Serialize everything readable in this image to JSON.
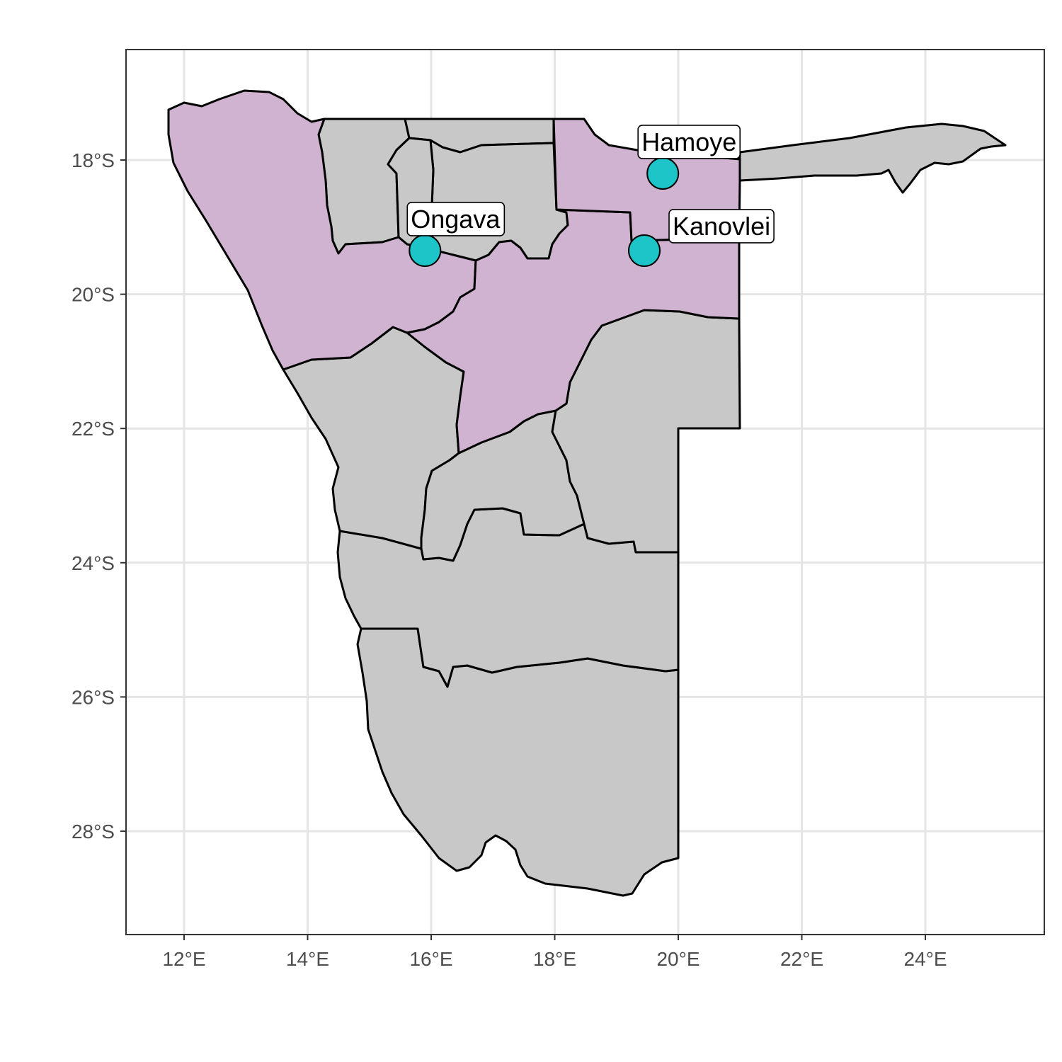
{
  "map": {
    "x_ticks": [
      {
        "value": 12,
        "label": "12°E"
      },
      {
        "value": 14,
        "label": "14°E"
      },
      {
        "value": 16,
        "label": "16°E"
      },
      {
        "value": 18,
        "label": "18°E"
      },
      {
        "value": 20,
        "label": "20°E"
      },
      {
        "value": 22,
        "label": "22°E"
      },
      {
        "value": 24,
        "label": "24°E"
      }
    ],
    "y_ticks": [
      {
        "value": -18,
        "label": "18°S"
      },
      {
        "value": -20,
        "label": "20°S"
      },
      {
        "value": -22,
        "label": "22°S"
      },
      {
        "value": -24,
        "label": "24°S"
      },
      {
        "value": -26,
        "label": "26°S"
      },
      {
        "value": -28,
        "label": "28°S"
      }
    ],
    "colors": {
      "highlighted_region": "#cfb3d0",
      "other_region": "#c8c8c8",
      "site_point": "#1dc5c8",
      "grid": "#e5e5e5",
      "panel_border": "#333333"
    },
    "sites": [
      {
        "name": "Hamoye",
        "lon": 19.75,
        "lat": -18.2
      },
      {
        "name": "Ongava",
        "lon": 15.9,
        "lat": -19.35
      },
      {
        "name": "Kanovlei",
        "lon": 19.45,
        "lat": -19.35
      }
    ]
  }
}
